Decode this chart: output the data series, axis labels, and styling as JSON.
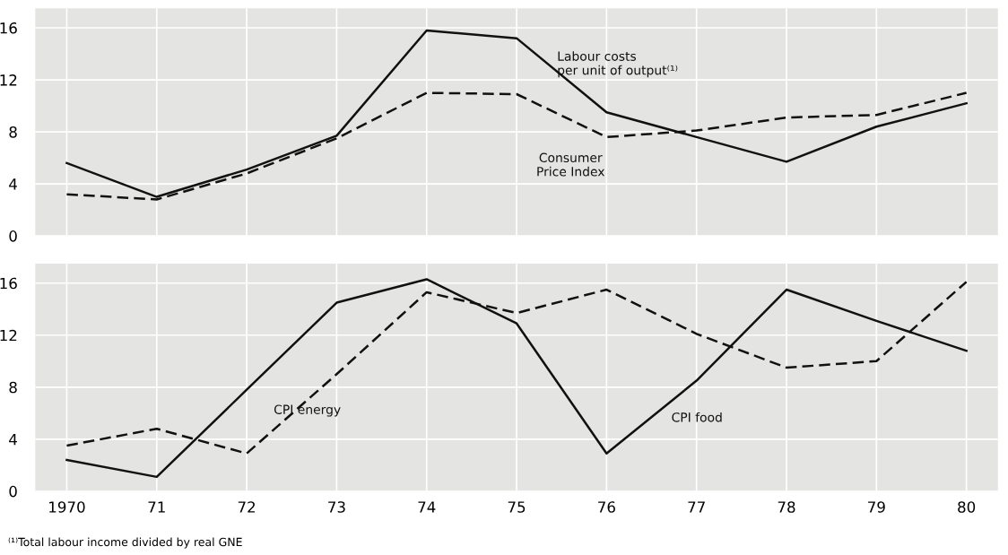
{
  "chart_data": [
    {
      "type": "line",
      "categories": [
        "1970",
        "71",
        "72",
        "73",
        "74",
        "75",
        "76",
        "77",
        "78",
        "79",
        "80"
      ],
      "ylim": [
        0,
        17.5
      ],
      "yticks": [
        0,
        4,
        8,
        12,
        16
      ],
      "grid": true,
      "tick_labels": "y",
      "series": [
        {
          "name": "Labour costs\nper unit of output⁽¹⁾",
          "color": "#111111",
          "line_style": "solid",
          "values": [
            5.6,
            3.0,
            5.1,
            7.7,
            15.8,
            15.2,
            9.5,
            7.6,
            5.7,
            8.4,
            10.2
          ]
        },
        {
          "name": "Consumer\nPrice Index",
          "color": "#111111",
          "line_style": "dashed",
          "values": [
            3.2,
            2.8,
            4.8,
            7.5,
            11.0,
            10.9,
            7.6,
            8.1,
            9.1,
            9.3,
            11.0
          ]
        }
      ]
    },
    {
      "type": "line",
      "categories": [
        "1970",
        "71",
        "72",
        "73",
        "74",
        "75",
        "76",
        "77",
        "78",
        "79",
        "80"
      ],
      "ylim": [
        0,
        17.5
      ],
      "yticks": [
        0,
        4,
        8,
        12,
        16
      ],
      "grid": true,
      "series": [
        {
          "name": "CPI food",
          "color": "#111111",
          "line_style": "solid",
          "values": [
            2.4,
            1.1,
            7.8,
            14.5,
            16.3,
            12.9,
            2.9,
            8.5,
            15.5,
            13.1,
            10.8
          ]
        },
        {
          "name": "CPI energy",
          "color": "#111111",
          "line_style": "dashed",
          "values": [
            3.5,
            4.8,
            2.9,
            9.0,
            15.3,
            13.7,
            15.5,
            12.1,
            9.5,
            10.0,
            16.1
          ]
        }
      ],
      "annotations": [
        "⁽¹⁾Total labour income divided by real GNE"
      ]
    }
  ]
}
